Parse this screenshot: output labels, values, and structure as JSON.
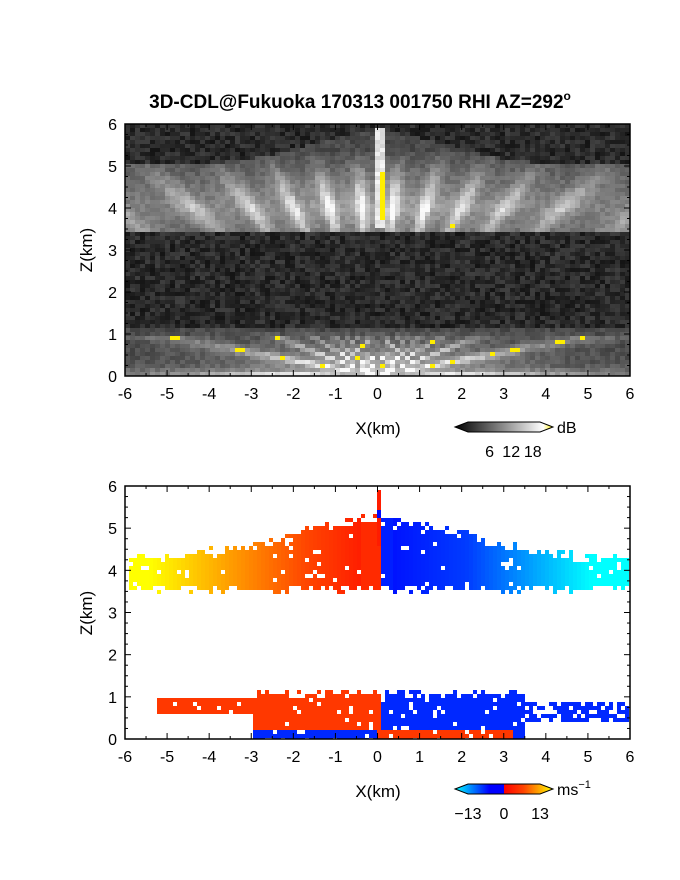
{
  "chart_data": [
    {
      "type": "heatmap",
      "title": "3D-CDL@Fukuoka 170313 001750 RHI AZ=292",
      "title_degree": "o",
      "xlabel": "X(km)",
      "ylabel": "Z(km)",
      "xlim": [
        -6,
        6
      ],
      "ylim": [
        0,
        6
      ],
      "xticks": [
        "-6",
        "-5",
        "-4",
        "-3",
        "-2",
        "-1",
        "0",
        "1",
        "2",
        "3",
        "4",
        "5",
        "6"
      ],
      "yticks": [
        "0",
        "1",
        "2",
        "3",
        "4",
        "5",
        "6"
      ],
      "colorbar": {
        "unit": "dB",
        "ticks": [
          "6",
          "12",
          "18"
        ],
        "range": [
          0,
          20
        ],
        "colors": [
          "#000000",
          "#ffffff",
          "#ffee00"
        ]
      },
      "layers": [
        {
          "name": "upper",
          "z_range": [
            3.4,
            5.8
          ],
          "base_dB": 4
        },
        {
          "name": "lower",
          "z_range": [
            0,
            1.1
          ],
          "base_dB": 6
        }
      ]
    },
    {
      "type": "heatmap",
      "xlabel": "X(km)",
      "ylabel": "Z(km)",
      "xlim": [
        -6,
        6
      ],
      "ylim": [
        0,
        6
      ],
      "xticks": [
        "-6",
        "-5",
        "-4",
        "-3",
        "-2",
        "-1",
        "0",
        "1",
        "2",
        "3",
        "4",
        "5",
        "6"
      ],
      "yticks": [
        "0",
        "1",
        "2",
        "3",
        "4",
        "5",
        "6"
      ],
      "colorbar": {
        "unit": "ms",
        "unit_exp": "−1",
        "ticks": [
          "−13",
          "0",
          "13"
        ],
        "range": [
          -13,
          13
        ],
        "colors": [
          "#00ffff",
          "#0000ff",
          "#ff0000",
          "#ffff00"
        ]
      },
      "layers": [
        {
          "name": "upper",
          "x_range": [
            -6,
            6
          ],
          "z_range": [
            3.3,
            5.3
          ],
          "velocity_left": 13,
          "velocity_right": -13
        },
        {
          "name": "lower",
          "x_range": [
            -5.2,
            6
          ],
          "z_range": [
            0,
            1.2
          ],
          "velocity_left": 4,
          "velocity_right": -4
        }
      ]
    }
  ]
}
